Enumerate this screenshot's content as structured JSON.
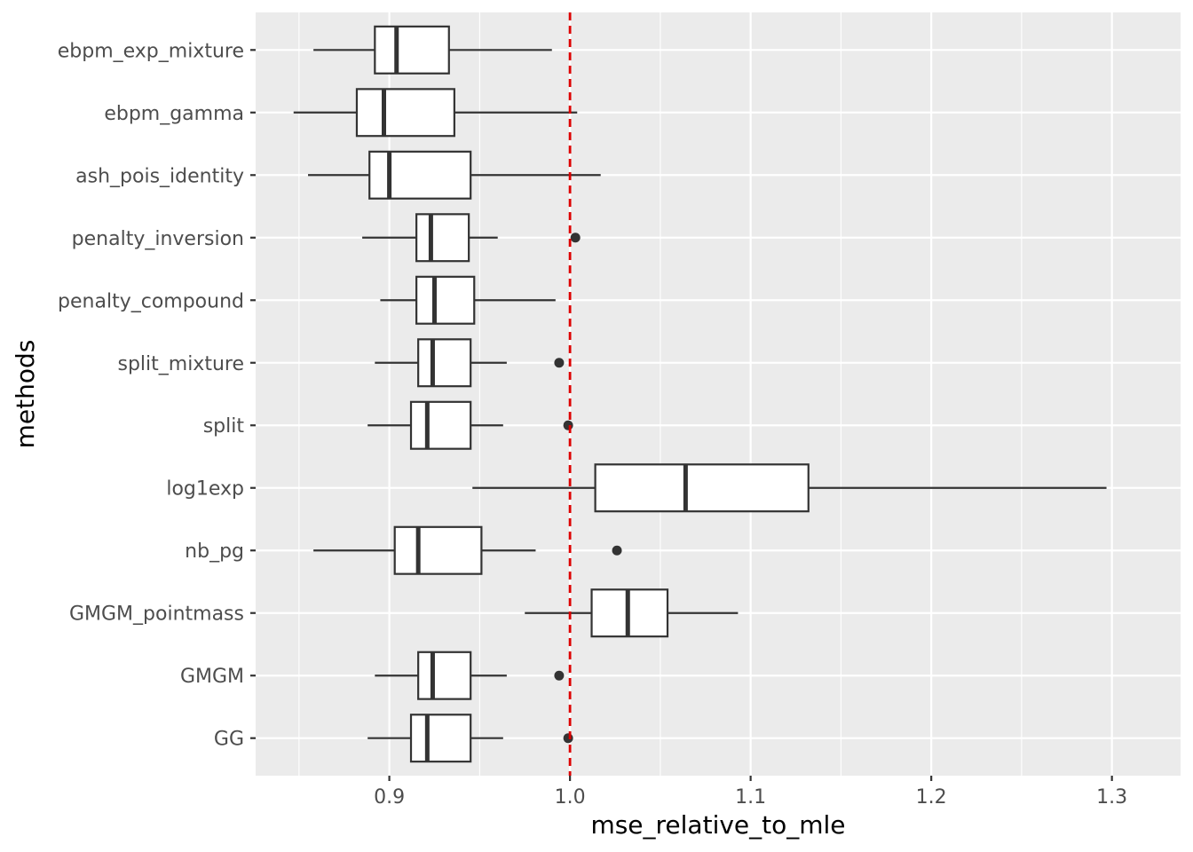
{
  "chart_data": {
    "type": "boxplot",
    "orientation": "horizontal",
    "title": "",
    "xlabel": "mse_relative_to_mle",
    "ylabel": "methods",
    "xlim": [
      0.826,
      1.338
    ],
    "x_ticks": [
      0.9,
      1.0,
      1.1,
      1.2,
      1.3
    ],
    "x_tick_labels": [
      "0.9",
      "1.0",
      "1.1",
      "1.2",
      "1.3"
    ],
    "grid": true,
    "panel_background": "#ebebeb",
    "grid_color": "#ffffff",
    "box_fill": "#ffffff",
    "box_stroke": "#333333",
    "reference_line": {
      "x": 1.0,
      "color": "#dd0000",
      "style": "dashed"
    },
    "categories": [
      "ebpm_exp_mixture",
      "ebpm_gamma",
      "ash_pois_identity",
      "penalty_inversion",
      "penalty_compound",
      "split_mixture",
      "split",
      "log1exp",
      "nb_pg",
      "GMGM_pointmass",
      "GMGM",
      "GG"
    ],
    "boxes": [
      {
        "name": "ebpm_exp_mixture",
        "whisker_low": 0.858,
        "q1": 0.892,
        "median": 0.904,
        "q3": 0.933,
        "whisker_high": 0.99,
        "outliers": []
      },
      {
        "name": "ebpm_gamma",
        "whisker_low": 0.847,
        "q1": 0.882,
        "median": 0.897,
        "q3": 0.936,
        "whisker_high": 1.004,
        "outliers": []
      },
      {
        "name": "ash_pois_identity",
        "whisker_low": 0.855,
        "q1": 0.889,
        "median": 0.9,
        "q3": 0.945,
        "whisker_high": 1.017,
        "outliers": []
      },
      {
        "name": "penalty_inversion",
        "whisker_low": 0.885,
        "q1": 0.915,
        "median": 0.923,
        "q3": 0.944,
        "whisker_high": 0.96,
        "outliers": [
          1.003
        ]
      },
      {
        "name": "penalty_compound",
        "whisker_low": 0.895,
        "q1": 0.915,
        "median": 0.925,
        "q3": 0.947,
        "whisker_high": 0.992,
        "outliers": []
      },
      {
        "name": "split_mixture",
        "whisker_low": 0.892,
        "q1": 0.916,
        "median": 0.924,
        "q3": 0.945,
        "whisker_high": 0.965,
        "outliers": [
          0.994
        ]
      },
      {
        "name": "split",
        "whisker_low": 0.888,
        "q1": 0.912,
        "median": 0.921,
        "q3": 0.945,
        "whisker_high": 0.963,
        "outliers": [
          0.999
        ]
      },
      {
        "name": "log1exp",
        "whisker_low": 0.946,
        "q1": 1.014,
        "median": 1.064,
        "q3": 1.132,
        "whisker_high": 1.297,
        "outliers": []
      },
      {
        "name": "nb_pg",
        "whisker_low": 0.858,
        "q1": 0.903,
        "median": 0.916,
        "q3": 0.951,
        "whisker_high": 0.981,
        "outliers": [
          1.026
        ]
      },
      {
        "name": "GMGM_pointmass",
        "whisker_low": 0.975,
        "q1": 1.012,
        "median": 1.032,
        "q3": 1.054,
        "whisker_high": 1.093,
        "outliers": []
      },
      {
        "name": "GMGM",
        "whisker_low": 0.892,
        "q1": 0.916,
        "median": 0.924,
        "q3": 0.945,
        "whisker_high": 0.965,
        "outliers": [
          0.994
        ]
      },
      {
        "name": "GG",
        "whisker_low": 0.888,
        "q1": 0.912,
        "median": 0.921,
        "q3": 0.945,
        "whisker_high": 0.963,
        "outliers": [
          0.999
        ]
      }
    ]
  }
}
